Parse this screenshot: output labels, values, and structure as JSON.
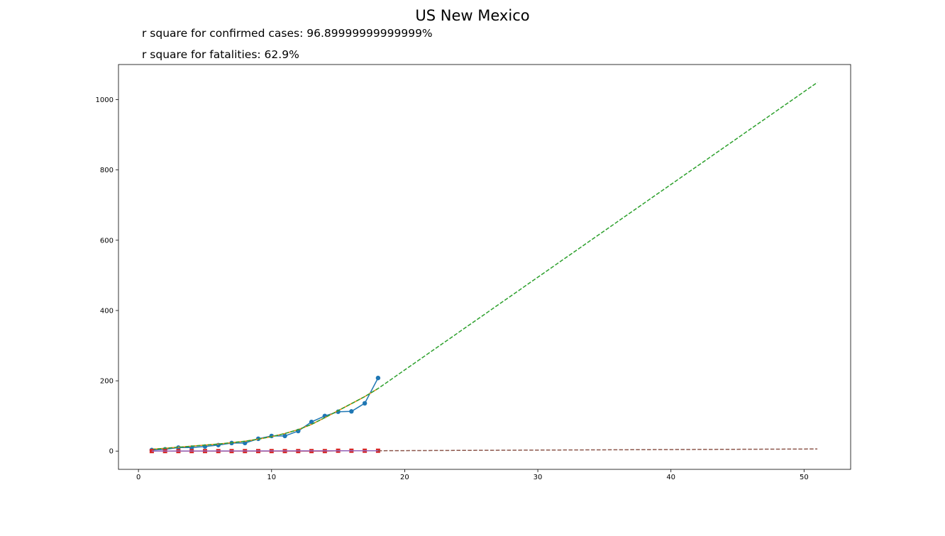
{
  "title": "US New Mexico",
  "notes": {
    "confirmed": "r square for confirmed cases: 96.89999999999999%",
    "fatalities": "r square for fatalities: 62.9%"
  },
  "chart_data": {
    "type": "line",
    "xlim": [
      -1.5,
      53.5
    ],
    "ylim": [
      -52,
      1100
    ],
    "x_ticks": [
      0,
      10,
      20,
      30,
      40,
      50
    ],
    "y_ticks": [
      0,
      200,
      400,
      600,
      800,
      1000
    ],
    "grid": false,
    "series": [
      {
        "key": "confirmed_observed",
        "style": "solid-markers-circle",
        "color": "#1f77b4",
        "x": [
          1,
          2,
          3,
          4,
          5,
          6,
          7,
          8,
          9,
          10,
          11,
          12,
          13,
          14,
          15,
          16,
          17,
          18
        ],
        "y": [
          3,
          5,
          10,
          10,
          13,
          17,
          23,
          23,
          35,
          43,
          43,
          57,
          83,
          100,
          112,
          113,
          136,
          208
        ]
      },
      {
        "key": "confirmed_fit",
        "style": "solid",
        "color": "#ff7f0e",
        "x": [
          1,
          2,
          3,
          4,
          5,
          6,
          7,
          8,
          9,
          10,
          11,
          12,
          13,
          14,
          15,
          16,
          17,
          18
        ],
        "y": [
          5,
          8,
          11,
          14,
          17,
          20,
          24,
          28,
          34,
          41,
          50,
          61,
          76,
          95,
          115,
          135,
          155,
          178
        ]
      },
      {
        "key": "confirmed_projection",
        "style": "dashed",
        "color": "#2ca02c",
        "x": [
          1,
          2,
          3,
          4,
          5,
          6,
          7,
          8,
          9,
          10,
          11,
          12,
          13,
          14,
          15,
          16,
          17,
          18,
          51
        ],
        "y": [
          5,
          8,
          11,
          14,
          17,
          20,
          24,
          28,
          34,
          41,
          50,
          61,
          76,
          95,
          115,
          135,
          155,
          178,
          1049
        ]
      },
      {
        "key": "fatalities_observed",
        "style": "solid-markers-square",
        "color": "#d62728",
        "x": [
          1,
          2,
          3,
          4,
          5,
          6,
          7,
          8,
          9,
          10,
          11,
          12,
          13,
          14,
          15,
          16,
          17,
          18
        ],
        "y": [
          0,
          0,
          0,
          0,
          0,
          0,
          0,
          0,
          0,
          0,
          0,
          0,
          0,
          0,
          1,
          1,
          1,
          1
        ]
      },
      {
        "key": "fatalities_fit",
        "style": "solid",
        "color": "#9467bd",
        "x": [
          1,
          18
        ],
        "y": [
          0,
          1
        ]
      },
      {
        "key": "fatalities_projection",
        "style": "dashed",
        "color": "#8c564b",
        "x": [
          18,
          51
        ],
        "y": [
          1,
          6
        ]
      }
    ]
  }
}
